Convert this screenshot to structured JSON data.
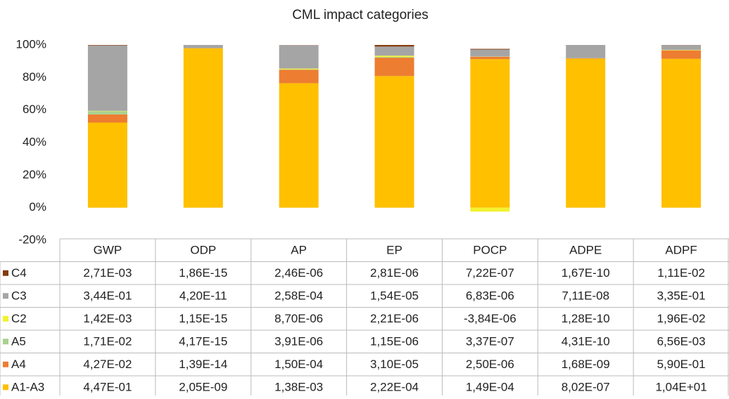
{
  "chart_data": {
    "type": "stacked_bar",
    "title": "CML impact categories",
    "categories": [
      "GWP",
      "ODP",
      "AP",
      "EP",
      "POCP",
      "ADPE",
      "ADPF"
    ],
    "ylim": [
      -20,
      100
    ],
    "yticks": [
      {
        "value": -20,
        "label": "-20%"
      },
      {
        "value": 0,
        "label": "0%"
      },
      {
        "value": 20,
        "label": "20%"
      },
      {
        "value": 40,
        "label": "40%"
      },
      {
        "value": 60,
        "label": "60%"
      },
      {
        "value": 80,
        "label": "80%"
      },
      {
        "value": 100,
        "label": "100%"
      }
    ],
    "series": [
      {
        "name": "C4",
        "color": "#843c0c",
        "values": [
          0.3,
          0.0,
          0.1,
          1.0,
          0.4,
          0.0,
          0.1
        ],
        "table": [
          "2,71E-03",
          "1,86E-15",
          "2,46E-06",
          "2,81E-06",
          "7,22E-07",
          "1,67E-10",
          "1,11E-02"
        ]
      },
      {
        "name": "C3",
        "color": "#a5a5a5",
        "values": [
          40.2,
          2.0,
          14.3,
          5.6,
          4.2,
          8.1,
          2.9
        ],
        "table": [
          "3,44E-01",
          "4,20E-11",
          "2,58E-04",
          "1,54E-05",
          "6,83E-06",
          "7,11E-08",
          "3,35E-01"
        ]
      },
      {
        "name": "C2",
        "color": "#f2f230",
        "values": [
          0.2,
          0.0,
          0.5,
          0.8,
          -2.4,
          0.0,
          0.2
        ],
        "table": [
          "1,42E-03",
          "1,15E-15",
          "8,70E-06",
          "2,21E-06",
          "-3,84E-06",
          "1,28E-10",
          "1,96E-02"
        ]
      },
      {
        "name": "A5",
        "color": "#a9d18e",
        "values": [
          2.0,
          0.0,
          0.2,
          0.4,
          0.2,
          0.1,
          0.1
        ],
        "table": [
          "1,71E-02",
          "4,17E-15",
          "3,91E-06",
          "1,15E-06",
          "3,37E-07",
          "4,31E-10",
          "6,56E-03"
        ]
      },
      {
        "name": "A4",
        "color": "#ed7d31",
        "values": [
          5.0,
          0.0,
          8.3,
          11.3,
          1.5,
          0.2,
          5.2
        ],
        "table": [
          "4,27E-02",
          "1,39E-14",
          "1,50E-04",
          "3,10E-05",
          "2,50E-06",
          "1,68E-09",
          "5,90E-01"
        ]
      },
      {
        "name": "A1-A3",
        "color": "#ffc000",
        "values": [
          52.3,
          98.0,
          76.5,
          80.9,
          91.3,
          91.6,
          91.5
        ],
        "table": [
          "4,47E-01",
          "2,05E-09",
          "1,38E-03",
          "2,22E-04",
          "1,49E-04",
          "8,02E-07",
          "1,04E+01"
        ]
      }
    ]
  }
}
